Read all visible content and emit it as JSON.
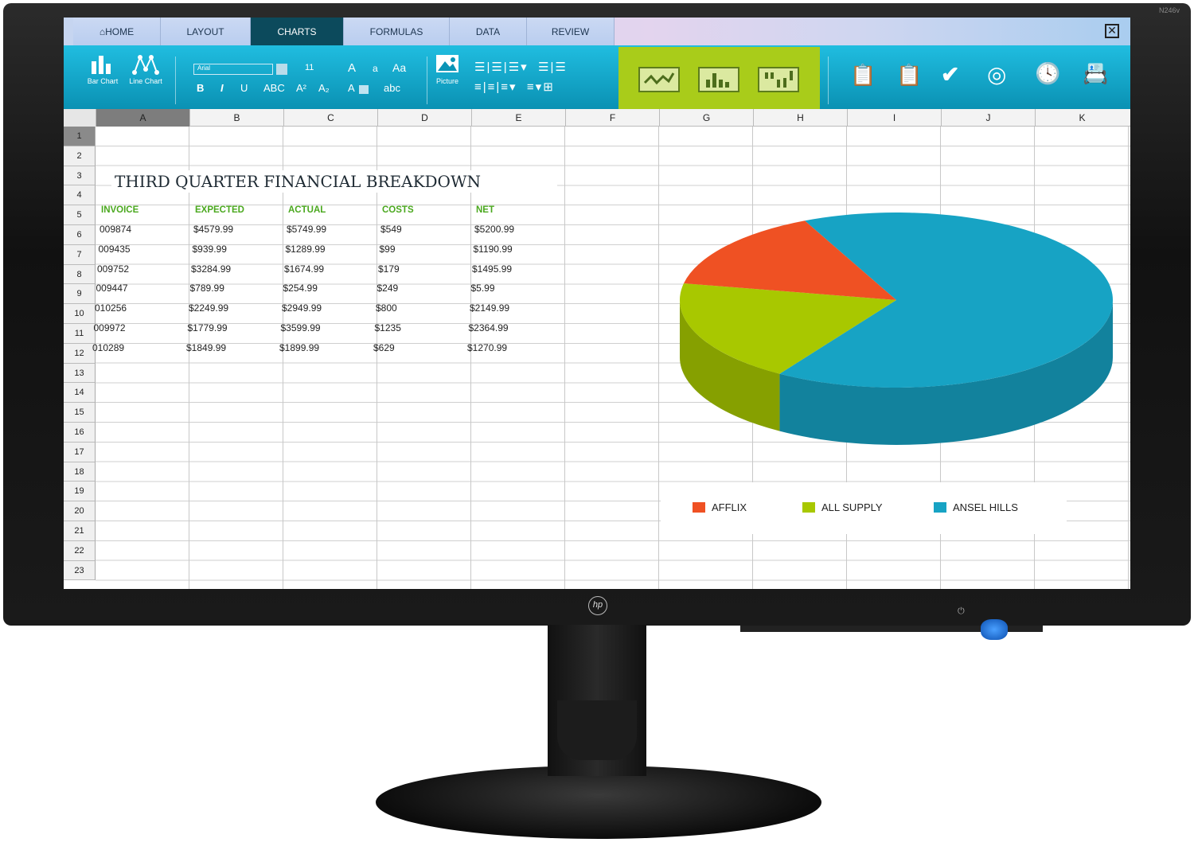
{
  "monitor": {
    "model": "N246v",
    "brand": "hp"
  },
  "tabs": [
    {
      "label": "HOME",
      "icon": "home-icon"
    },
    {
      "label": "LAYOUT"
    },
    {
      "label": "CHARTS",
      "active": true
    },
    {
      "label": "FORMULAS"
    },
    {
      "label": "DATA"
    },
    {
      "label": "REVIEW"
    }
  ],
  "ribbon": {
    "bar_chart": "Bar Chart",
    "line_chart": "Line Chart",
    "font": "Arial",
    "font_size": "11",
    "grow": "A",
    "shrink": "a",
    "case": "Aa",
    "bold": "B",
    "italic": "I",
    "underline": "U",
    "strike": "ABC",
    "superscript": "A²",
    "subscript": "A₂",
    "highlight": "A",
    "clear": "abc",
    "picture": "Picture"
  },
  "columns": [
    "A",
    "B",
    "C",
    "D",
    "E",
    "F",
    "G",
    "H",
    "I",
    "J",
    "K"
  ],
  "rows": [
    "1",
    "2",
    "3",
    "4",
    "5",
    "6",
    "7",
    "8",
    "9",
    "10",
    "11",
    "12",
    "13",
    "14",
    "15",
    "16",
    "17",
    "18",
    "19",
    "20",
    "21",
    "22",
    "23"
  ],
  "sheet": {
    "title": "THIRD QUARTER FINANCIAL BREAKDOWN",
    "headers": [
      "INVOICE",
      "EXPECTED",
      "ACTUAL",
      "COSTS",
      "NET"
    ],
    "data": [
      [
        "009874",
        "$4579.99",
        "$5749.99",
        "$549",
        "$5200.99"
      ],
      [
        "009435",
        "$939.99",
        "$1289.99",
        "$99",
        "$1190.99"
      ],
      [
        "009752",
        "$3284.99",
        "$1674.99",
        "$179",
        "$1495.99"
      ],
      [
        "009447",
        "$789.99",
        "$254.99",
        "$249",
        "$5.99"
      ],
      [
        "010256",
        "$2249.99",
        "$2949.99",
        "$800",
        "$2149.99"
      ],
      [
        "009972",
        "$1779.99",
        "$3599.99",
        "$1235",
        "$2364.99"
      ],
      [
        "010289",
        "$1849.99",
        "$1899.99",
        "$629",
        "$1270.99"
      ]
    ]
  },
  "chart_data": {
    "type": "pie",
    "style": "3d",
    "categories": [
      "AFFLIX",
      "ALL SUPPLY",
      "ANSEL HILLS"
    ],
    "values": [
      15,
      19,
      66
    ],
    "colors": [
      "#ef5123",
      "#a8c800",
      "#17a3c4"
    ],
    "legend": "bottom"
  }
}
